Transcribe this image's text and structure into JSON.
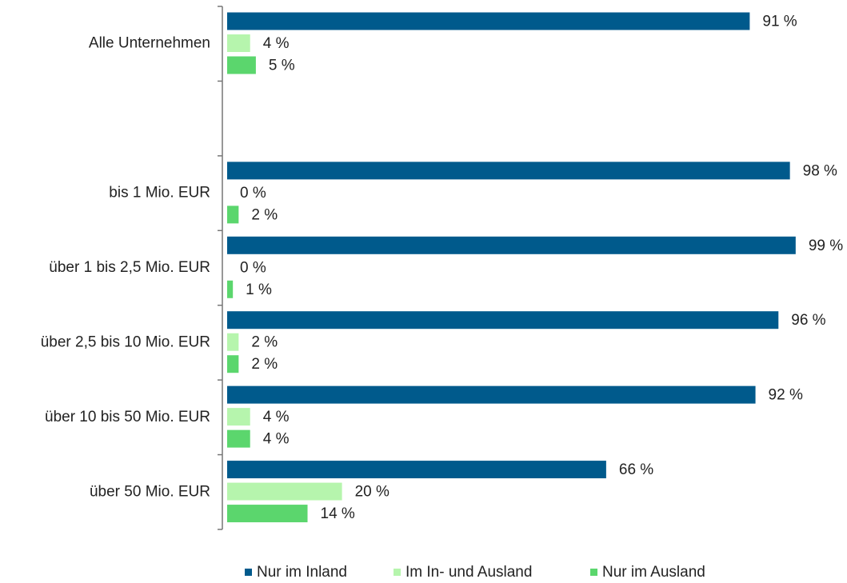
{
  "chart_data": {
    "type": "bar",
    "orientation": "horizontal",
    "categories": [
      "Alle Unternehmen",
      null,
      "bis 1 Mio. EUR",
      "über 1 bis 2,5 Mio. EUR",
      "über 2,5 bis 10 Mio. EUR",
      "über 10 bis 50 Mio. EUR",
      "über 50 Mio. EUR"
    ],
    "series": [
      {
        "name": "Nur im Inland",
        "color": "#005a8c",
        "values": [
          91,
          null,
          98,
          99,
          96,
          92,
          66
        ],
        "value_labels": [
          "91 %",
          null,
          "98 %",
          "99 %",
          "96 %",
          "92 %",
          "66 %"
        ]
      },
      {
        "name": "Im In- und Ausland",
        "color": "#b6f5ad",
        "values": [
          4,
          null,
          0,
          0,
          2,
          4,
          20
        ],
        "value_labels": [
          "4 %",
          null,
          "0 %",
          "0 %",
          "2 %",
          "4 %",
          "20 %"
        ]
      },
      {
        "name": "Nur im Ausland",
        "color": "#5bd66d",
        "values": [
          5,
          null,
          2,
          1,
          2,
          4,
          14
        ],
        "value_labels": [
          "5 %",
          null,
          "2 %",
          "1 %",
          "2 %",
          "4 %",
          "14 %"
        ]
      }
    ],
    "legend": "bottom"
  }
}
